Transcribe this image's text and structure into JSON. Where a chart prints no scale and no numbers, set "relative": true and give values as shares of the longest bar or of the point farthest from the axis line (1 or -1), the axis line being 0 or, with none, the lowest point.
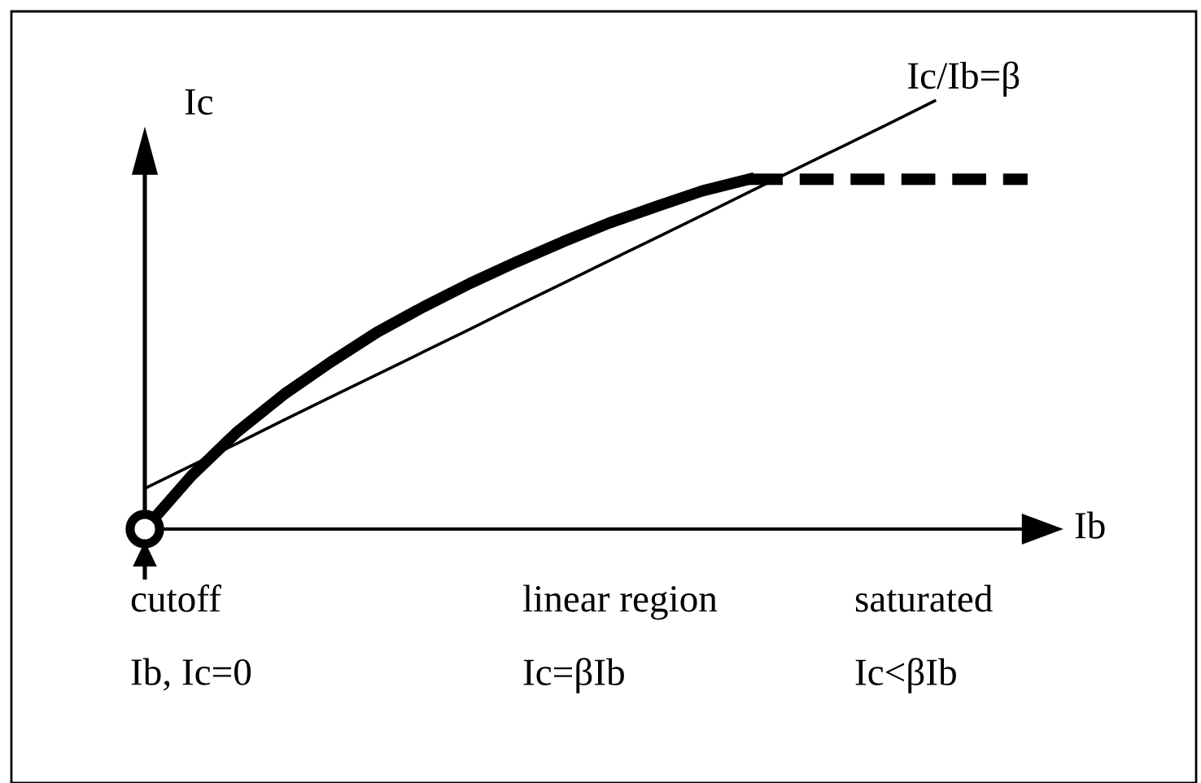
{
  "chart_data": {
    "type": "line",
    "relative": true,
    "xlabel": "Ib",
    "ylabel": "Ic",
    "categories": [
      null,
      null,
      null,
      null,
      null,
      null,
      null,
      null,
      null,
      null,
      null,
      null,
      null,
      null,
      null,
      null,
      null,
      null,
      null,
      null
    ],
    "series": [
      {
        "values": [
          0,
          0.124,
          0.228,
          0.315,
          0.39,
          0.46,
          0.519,
          0.574,
          0.624,
          0.671,
          0.715,
          0.753,
          0.79,
          0.817,
          null,
          null,
          null,
          null,
          null,
          null
        ],
        "color": "#000000",
        "line_style": "solid"
      },
      {
        "values": [
          null,
          null,
          null,
          null,
          null,
          null,
          null,
          null,
          null,
          null,
          null,
          null,
          null,
          0.817,
          0.817,
          0.817,
          0.817,
          0.817,
          0.817,
          0.817
        ],
        "color": "#000000",
        "line_style": "dashed"
      },
      {
        "name": "Ic/Ib=β",
        "values": [
          0.095,
          0.148,
          0.201,
          0.255,
          0.308,
          0.361,
          0.414,
          0.467,
          0.521,
          0.574,
          0.627,
          0.68,
          0.733,
          0.787,
          0.84,
          0.893,
          0.946,
          1.0,
          null,
          null
        ],
        "color": "#000000",
        "line_style": "solid"
      }
    ],
    "annotations": [
      "cutoff",
      "linear region",
      "saturated",
      "Ib, Ic=0",
      "Ic=βIb",
      "Ic<βIb"
    ]
  }
}
